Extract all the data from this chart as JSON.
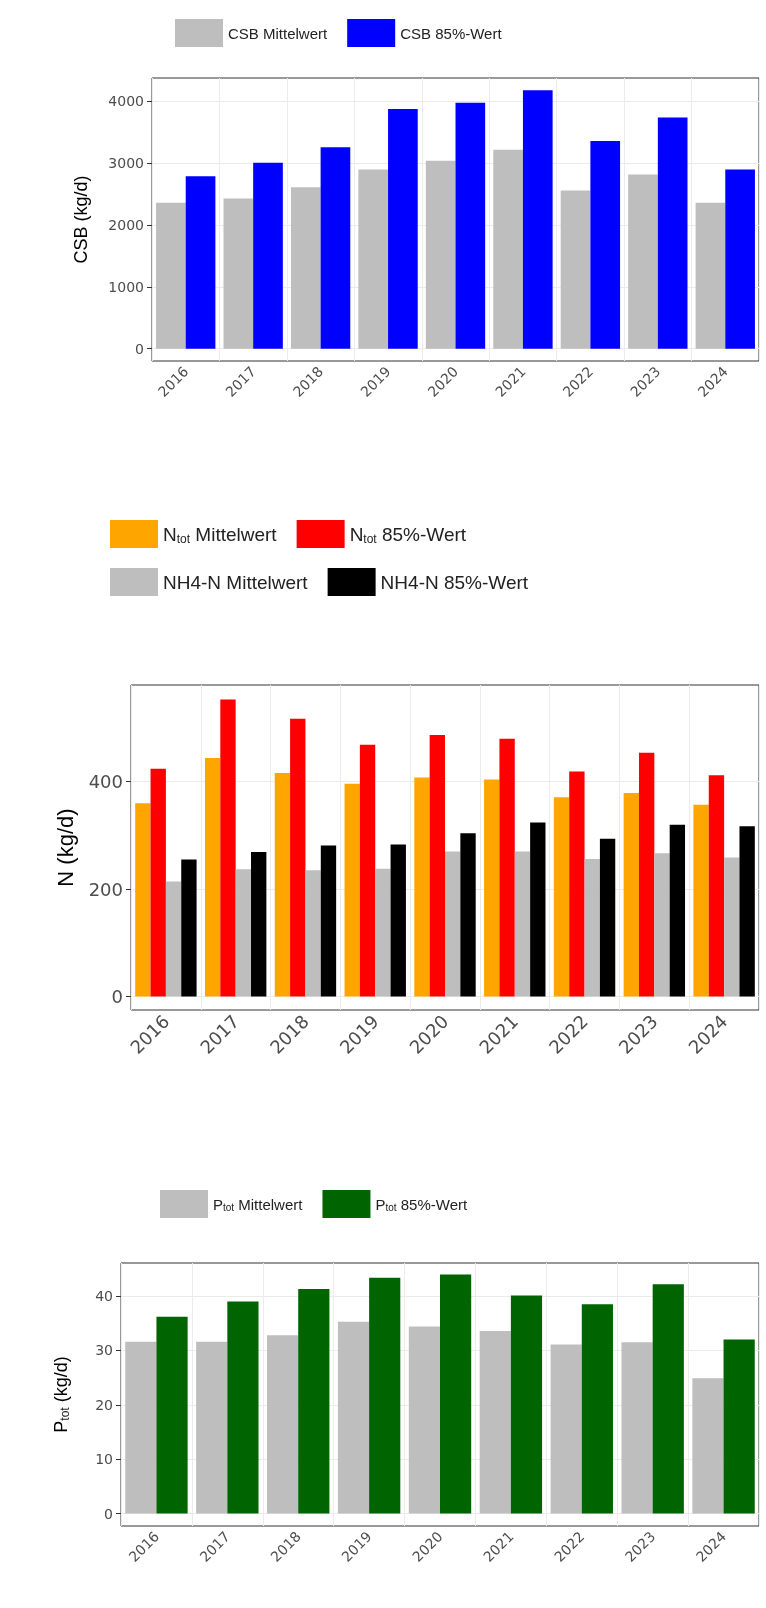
{
  "chart_data": [
    {
      "type": "bar",
      "ylabel": "CSB (kg/d)",
      "categories": [
        "2016",
        "2017",
        "2018",
        "2019",
        "2020",
        "2021",
        "2022",
        "2023",
        "2024"
      ],
      "series": [
        {
          "name": "CSB Mittelwert",
          "color": "#bebebe",
          "values": [
            2360,
            2430,
            2610,
            2900,
            3040,
            3220,
            2560,
            2820,
            2360
          ]
        },
        {
          "name": "CSB 85%-Wert",
          "color": "#0000ff",
          "values": [
            2790,
            3010,
            3260,
            3880,
            3980,
            4180,
            3360,
            3740,
            2900
          ]
        }
      ],
      "ylim": [
        -200,
        4380
      ],
      "yticks": [
        0,
        1000,
        2000,
        3000,
        4000
      ],
      "grid": true,
      "legend": "top"
    },
    {
      "type": "bar",
      "ylabel": "N (kg/d)",
      "categories": [
        "2016",
        "2017",
        "2018",
        "2019",
        "2020",
        "2021",
        "2022",
        "2023",
        "2024"
      ],
      "series": [
        {
          "name": "N$_{tot}$ Mittelwert",
          "color": "#ffa500",
          "values": [
            360,
            444,
            416,
            396,
            408,
            404,
            371,
            379,
            357
          ]
        },
        {
          "name": "N$_{tot}$ 85%-Wert",
          "color": "#ff0000",
          "values": [
            424,
            553,
            517,
            469,
            487,
            480,
            419,
            454,
            412
          ]
        },
        {
          "name": "NH4-N Mittelwert",
          "color": "#bebebe",
          "values": [
            214,
            237,
            235,
            238,
            270,
            270,
            256,
            267,
            259
          ]
        },
        {
          "name": "NH4-N 85%-Wert",
          "color": "#000000",
          "values": [
            255,
            269,
            281,
            283,
            304,
            324,
            294,
            320,
            317
          ]
        }
      ],
      "ylim": [
        -25,
        580
      ],
      "yticks": [
        0,
        200,
        400
      ],
      "grid": true,
      "legend": "top"
    },
    {
      "type": "bar",
      "ylabel": "P$_{tot}$ (kg/d)",
      "categories": [
        "2016",
        "2017",
        "2018",
        "2019",
        "2020",
        "2021",
        "2022",
        "2023",
        "2024"
      ],
      "series": [
        {
          "name": "P$_{tot}$ Mittelwert",
          "color": "#bebebe",
          "values": [
            31.6,
            31.6,
            32.8,
            35.3,
            34.4,
            33.6,
            31.1,
            31.5,
            24.9
          ]
        },
        {
          "name": "P$_{tot}$ 85%-Wert",
          "color": "#006400",
          "values": [
            36.2,
            39.0,
            41.3,
            43.4,
            44.0,
            40.1,
            38.5,
            42.2,
            32.0
          ]
        }
      ],
      "ylim": [
        -2.3,
        46.1
      ],
      "yticks": [
        0,
        10,
        20,
        30,
        40
      ],
      "grid": true,
      "legend": "top"
    }
  ]
}
